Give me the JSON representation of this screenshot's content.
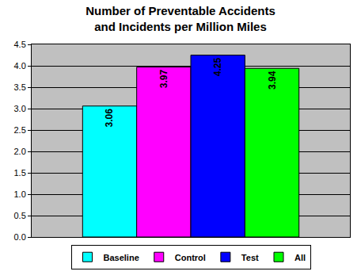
{
  "chart_data": {
    "type": "bar",
    "title": "Number of Preventable Accidents\nand Incidents per Million Miles",
    "categories": [
      null
    ],
    "series": [
      {
        "name": "Baseline",
        "color": "#00FFFF",
        "values": [
          3.06
        ]
      },
      {
        "name": "Control",
        "color": "#FF00FF",
        "values": [
          3.97
        ]
      },
      {
        "name": "Test",
        "color": "#0000FF",
        "values": [
          4.25
        ]
      },
      {
        "name": "All",
        "color": "#00FF00",
        "values": [
          3.94
        ]
      }
    ],
    "ylim": [
      0,
      4.5
    ],
    "yticks": [
      {
        "value": 0,
        "label": "0.0"
      },
      {
        "value": 0.5,
        "label": "0.5"
      },
      {
        "value": 1,
        "label": "1.0"
      },
      {
        "value": 1.5,
        "label": "1.5"
      },
      {
        "value": 2,
        "label": "2.0"
      },
      {
        "value": 2.5,
        "label": "2.5"
      },
      {
        "value": 3,
        "label": "3.0"
      },
      {
        "value": 3.5,
        "label": "3.5"
      },
      {
        "value": 4,
        "label": "4.0"
      },
      {
        "value": 4.5,
        "label": "4.5"
      }
    ],
    "grid": true,
    "legend": "bottom",
    "data_labels": true,
    "tick_labels": "y"
  }
}
